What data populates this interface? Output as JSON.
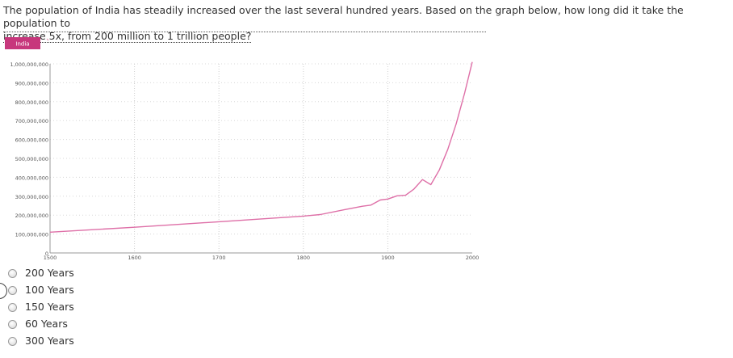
{
  "question": {
    "line1": "The population of India has steadily increased over the last several hundred years. Based on the graph below, how long did it take the population to",
    "line2": "increase 5x, from 200 million to 1 trillion people?"
  },
  "chart_data": {
    "type": "line",
    "title": "",
    "xlabel": "",
    "ylabel": "",
    "legend": {
      "label": "India",
      "position": "top-left",
      "color": "#c7377c"
    },
    "line_color": "#de6fa7",
    "grid": true,
    "xlim": [
      1500,
      2000
    ],
    "ylim": [
      0,
      1000000000
    ],
    "x_ticks": [
      "1500",
      "1600",
      "1700",
      "1800",
      "1900",
      "2000"
    ],
    "y_ticks": [
      "0",
      "100,000,000",
      "200,000,000",
      "300,000,000",
      "400,000,000",
      "500,000,000",
      "600,000,000",
      "700,000,000",
      "800,000,000",
      "900,000,000",
      "1,000,000,000"
    ],
    "series": [
      {
        "x": [
          1500,
          1600,
          1700,
          1750,
          1800,
          1820,
          1850,
          1870,
          1880,
          1891,
          1900,
          1911,
          1921,
          1931,
          1941,
          1951,
          1961,
          1971,
          1981,
          1991,
          2000
        ],
        "y": [
          110000000,
          136000000,
          165000000,
          180000000,
          195000000,
          203000000,
          230000000,
          247000000,
          253000000,
          280000000,
          285000000,
          302000000,
          305000000,
          338000000,
          388000000,
          361000000,
          439000000,
          548000000,
          683000000,
          846000000,
          1010000000
        ]
      }
    ]
  },
  "choices": [
    {
      "label": "200 Years"
    },
    {
      "label": "100 Years"
    },
    {
      "label": "150 Years"
    },
    {
      "label": "60 Years"
    },
    {
      "label": "300 Years"
    }
  ]
}
